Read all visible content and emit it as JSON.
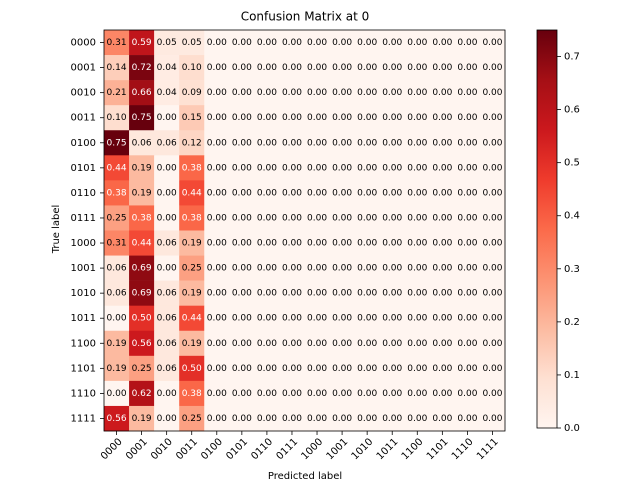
{
  "chart_data": {
    "type": "heatmap",
    "title": "Confusion Matrix at 0",
    "x_label": "Predicted label",
    "y_label": "True label",
    "categories": [
      "0000",
      "0001",
      "0010",
      "0011",
      "0100",
      "0101",
      "0110",
      "0111",
      "1000",
      "1001",
      "1010",
      "1011",
      "1100",
      "1101",
      "1110",
      "1111"
    ],
    "values": [
      [
        0.31,
        0.59,
        0.05,
        0.05,
        0,
        0,
        0,
        0,
        0,
        0,
        0,
        0,
        0,
        0,
        0,
        0
      ],
      [
        0.14,
        0.72,
        0.04,
        0.1,
        0,
        0,
        0,
        0,
        0,
        0,
        0,
        0,
        0,
        0,
        0,
        0
      ],
      [
        0.21,
        0.66,
        0.04,
        0.09,
        0,
        0,
        0,
        0,
        0,
        0,
        0,
        0,
        0,
        0,
        0,
        0
      ],
      [
        0.1,
        0.75,
        0.0,
        0.15,
        0,
        0,
        0,
        0,
        0,
        0,
        0,
        0,
        0,
        0,
        0,
        0
      ],
      [
        0.75,
        0.06,
        0.06,
        0.12,
        0,
        0,
        0,
        0,
        0,
        0,
        0,
        0,
        0,
        0,
        0,
        0
      ],
      [
        0.44,
        0.19,
        0.0,
        0.38,
        0,
        0,
        0,
        0,
        0,
        0,
        0,
        0,
        0,
        0,
        0,
        0
      ],
      [
        0.38,
        0.19,
        0.0,
        0.44,
        0,
        0,
        0,
        0,
        0,
        0,
        0,
        0,
        0,
        0,
        0,
        0
      ],
      [
        0.25,
        0.38,
        0.0,
        0.38,
        0,
        0,
        0,
        0,
        0,
        0,
        0,
        0,
        0,
        0,
        0,
        0
      ],
      [
        0.31,
        0.44,
        0.06,
        0.19,
        0,
        0,
        0,
        0,
        0,
        0,
        0,
        0,
        0,
        0,
        0,
        0
      ],
      [
        0.06,
        0.69,
        0.0,
        0.25,
        0,
        0,
        0,
        0,
        0,
        0,
        0,
        0,
        0,
        0,
        0,
        0
      ],
      [
        0.06,
        0.69,
        0.06,
        0.19,
        0,
        0,
        0,
        0,
        0,
        0,
        0,
        0,
        0,
        0,
        0,
        0
      ],
      [
        0.0,
        0.5,
        0.06,
        0.44,
        0,
        0,
        0,
        0,
        0,
        0,
        0,
        0,
        0,
        0,
        0,
        0
      ],
      [
        0.19,
        0.56,
        0.06,
        0.19,
        0,
        0,
        0,
        0,
        0,
        0,
        0,
        0,
        0,
        0,
        0,
        0
      ],
      [
        0.19,
        0.25,
        0.06,
        0.5,
        0,
        0,
        0,
        0,
        0,
        0,
        0,
        0,
        0,
        0,
        0,
        0
      ],
      [
        0.0,
        0.62,
        0.0,
        0.38,
        0,
        0,
        0,
        0,
        0,
        0,
        0,
        0,
        0,
        0,
        0,
        0
      ],
      [
        0.56,
        0.19,
        0.0,
        0.25,
        0,
        0,
        0,
        0,
        0,
        0,
        0,
        0,
        0,
        0,
        0,
        0
      ]
    ],
    "value_labels": [
      [
        "0.31",
        "0.59",
        "0.05",
        "0.05",
        "0.00",
        "0.00",
        "0.00",
        "0.00",
        "0.00",
        "0.00",
        "0.00",
        "0.00",
        "0.00",
        "0.00",
        "0.00",
        "0.00"
      ],
      [
        "0.14",
        "0.72",
        "0.04",
        "0.10",
        "0.00",
        "0.00",
        "0.00",
        "0.00",
        "0.00",
        "0.00",
        "0.00",
        "0.00",
        "0.00",
        "0.00",
        "0.00",
        "0.00"
      ],
      [
        "0.21",
        "0.66",
        "0.04",
        "0.09",
        "0.00",
        "0.00",
        "0.00",
        "0.00",
        "0.00",
        "0.00",
        "0.00",
        "0.00",
        "0.00",
        "0.00",
        "0.00",
        "0.00"
      ],
      [
        "0.10",
        "0.75",
        "0.00",
        "0.15",
        "0.00",
        "0.00",
        "0.00",
        "0.00",
        "0.00",
        "0.00",
        "0.00",
        "0.00",
        "0.00",
        "0.00",
        "0.00",
        "0.00"
      ],
      [
        "0.75",
        "0.06",
        "0.06",
        "0.12",
        "0.00",
        "0.00",
        "0.00",
        "0.00",
        "0.00",
        "0.00",
        "0.00",
        "0.00",
        "0.00",
        "0.00",
        "0.00",
        "0.00"
      ],
      [
        "0.44",
        "0.19",
        "0.00",
        "0.38",
        "0.00",
        "0.00",
        "0.00",
        "0.00",
        "0.00",
        "0.00",
        "0.00",
        "0.00",
        "0.00",
        "0.00",
        "0.00",
        "0.00"
      ],
      [
        "0.38",
        "0.19",
        "0.00",
        "0.44",
        "0.00",
        "0.00",
        "0.00",
        "0.00",
        "0.00",
        "0.00",
        "0.00",
        "0.00",
        "0.00",
        "0.00",
        "0.00",
        "0.00"
      ],
      [
        "0.25",
        "0.38",
        "0.00",
        "0.38",
        "0.00",
        "0.00",
        "0.00",
        "0.00",
        "0.00",
        "0.00",
        "0.00",
        "0.00",
        "0.00",
        "0.00",
        "0.00",
        "0.00"
      ],
      [
        "0.31",
        "0.44",
        "0.06",
        "0.19",
        "0.00",
        "0.00",
        "0.00",
        "0.00",
        "0.00",
        "0.00",
        "0.00",
        "0.00",
        "0.00",
        "0.00",
        "0.00",
        "0.00"
      ],
      [
        "0.06",
        "0.69",
        "0.00",
        "0.25",
        "0.00",
        "0.00",
        "0.00",
        "0.00",
        "0.00",
        "0.00",
        "0.00",
        "0.00",
        "0.00",
        "0.00",
        "0.00",
        "0.00"
      ],
      [
        "0.06",
        "0.69",
        "0.06",
        "0.19",
        "0.00",
        "0.00",
        "0.00",
        "0.00",
        "0.00",
        "0.00",
        "0.00",
        "0.00",
        "0.00",
        "0.00",
        "0.00",
        "0.00"
      ],
      [
        "0.00",
        "0.50",
        "0.06",
        "0.44",
        "0.00",
        "0.00",
        "0.00",
        "0.00",
        "0.00",
        "0.00",
        "0.00",
        "0.00",
        "0.00",
        "0.00",
        "0.00",
        "0.00"
      ],
      [
        "0.19",
        "0.56",
        "0.06",
        "0.19",
        "0.00",
        "0.00",
        "0.00",
        "0.00",
        "0.00",
        "0.00",
        "0.00",
        "0.00",
        "0.00",
        "0.00",
        "0.00",
        "0.00"
      ],
      [
        "0.19",
        "0.25",
        "0.06",
        "0.50",
        "0.00",
        "0.00",
        "0.00",
        "0.00",
        "0.00",
        "0.00",
        "0.00",
        "0.00",
        "0.00",
        "0.00",
        "0.00",
        "0.00"
      ],
      [
        "0.00",
        "0.62",
        "0.00",
        "0.38",
        "0.00",
        "0.00",
        "0.00",
        "0.00",
        "0.00",
        "0.00",
        "0.00",
        "0.00",
        "0.00",
        "0.00",
        "0.00",
        "0.00"
      ],
      [
        "0.56",
        "0.19",
        "0.00",
        "0.25",
        "0.00",
        "0.00",
        "0.00",
        "0.00",
        "0.00",
        "0.00",
        "0.00",
        "0.00",
        "0.00",
        "0.00",
        "0.00",
        "0.00"
      ]
    ],
    "colormap": "Reds",
    "clim": [
      0,
      0.75
    ],
    "cticks": [
      {
        "value": 0,
        "label": "0.0"
      },
      0.1,
      0.2,
      0.3,
      0.4,
      0.5,
      0.6,
      0.7
    ]
  }
}
